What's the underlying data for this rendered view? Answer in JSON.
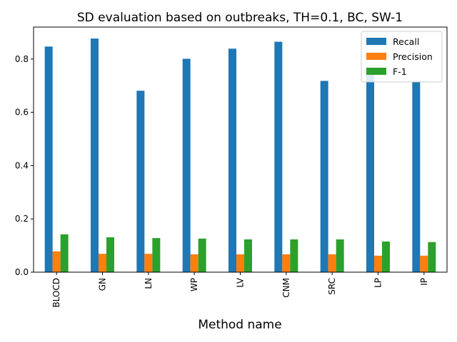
{
  "chart_data": {
    "type": "bar",
    "title": "SD evaluation based on outbreaks, TH=0.1, BC, SW-1",
    "xlabel": "Method name",
    "ylabel": "",
    "categories": [
      "BLOCD",
      "GN",
      "LN",
      "WP",
      "LV",
      "CNM",
      "SRC",
      "LP",
      "IP"
    ],
    "series": [
      {
        "name": "Recall",
        "color": "#1f77b4",
        "values": [
          0.847,
          0.877,
          0.681,
          0.801,
          0.839,
          0.865,
          0.718,
          0.755,
          0.716
        ]
      },
      {
        "name": "Precision",
        "color": "#ff7f0e",
        "values": [
          0.078,
          0.069,
          0.069,
          0.067,
          0.067,
          0.067,
          0.067,
          0.062,
          0.062
        ]
      },
      {
        "name": "F-1",
        "color": "#2ca02c",
        "values": [
          0.142,
          0.131,
          0.128,
          0.126,
          0.123,
          0.123,
          0.123,
          0.115,
          0.113
        ]
      }
    ],
    "ylim": [
      0,
      0.92
    ],
    "yticks": [
      "0.0",
      "0.2",
      "0.4",
      "0.6",
      "0.8"
    ],
    "grid": false,
    "legend_position": "top-right"
  }
}
